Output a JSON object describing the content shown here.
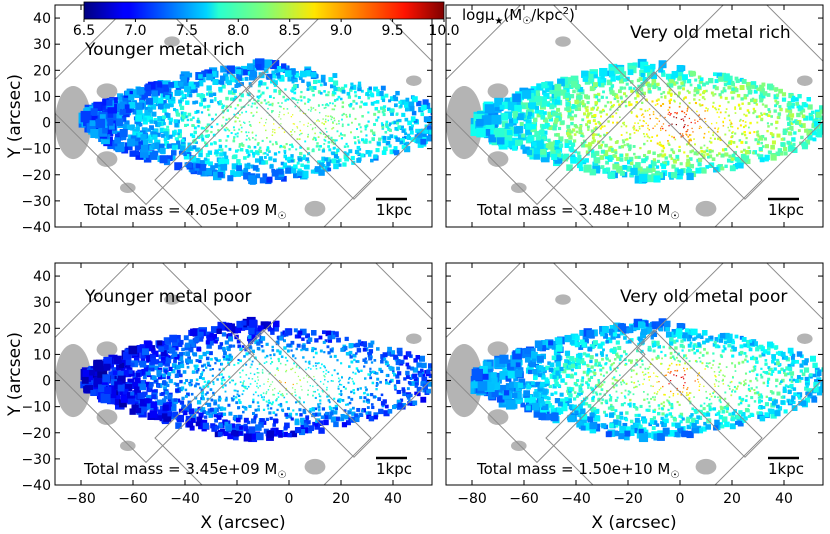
{
  "colorbar": {
    "label": "logμ",
    "label_suffix": "(M",
    "label_unit": "/kpc",
    "label_exp": "2",
    "label_close": ")",
    "ticks": [
      6.5,
      7.0,
      7.5,
      8.0,
      8.5,
      9.0,
      9.5,
      10.0
    ],
    "tick_labels": [
      "6.5",
      "7.0",
      "7.5",
      "8.0",
      "8.5",
      "9.0",
      "9.5",
      "10.0"
    ],
    "range": [
      6.5,
      10.0
    ],
    "colormap": "jet"
  },
  "chart_data": [
    {
      "type": "scatter",
      "title": "Younger metal rich",
      "mass_prefix": "Total mass = ",
      "mass_value": "4.05e+09",
      "mass_unit": "M",
      "scalebar": "1kpc",
      "peak_logmu": 8.7,
      "core_logmu": 8.5,
      "outer_logmu": 7.3,
      "xlabel": "",
      "ylabel": "Y (arcsec)",
      "xlim": [
        -90,
        55
      ],
      "ylim": [
        -40,
        45
      ]
    },
    {
      "type": "scatter",
      "title": "Very old metal rich",
      "mass_prefix": "Total mass = ",
      "mass_value": "3.48e+10",
      "mass_unit": "M",
      "scalebar": "1kpc",
      "peak_logmu": 9.9,
      "core_logmu": 9.0,
      "outer_logmu": 7.7,
      "xlabel": "",
      "ylabel": "",
      "xlim": [
        -90,
        55
      ],
      "ylim": [
        -40,
        45
      ]
    },
    {
      "type": "scatter",
      "title": "Younger metal poor",
      "mass_prefix": "Total mass = ",
      "mass_value": "3.45e+09",
      "mass_unit": "M",
      "scalebar": "1kpc",
      "peak_logmu": 8.9,
      "core_logmu": 8.1,
      "outer_logmu": 6.9,
      "xlabel": "X (arcsec)",
      "ylabel": "Y (arcsec)",
      "xlim": [
        -90,
        55
      ],
      "ylim": [
        -40,
        45
      ]
    },
    {
      "type": "scatter",
      "title": "Very old metal poor",
      "mass_prefix": "Total mass = ",
      "mass_value": "1.50e+10",
      "mass_unit": "M",
      "scalebar": "1kpc",
      "peak_logmu": 9.8,
      "core_logmu": 8.6,
      "outer_logmu": 7.4,
      "xlabel": "X (arcsec)",
      "ylabel": "",
      "xlim": [
        -90,
        55
      ],
      "ylim": [
        -40,
        45
      ]
    }
  ],
  "axes": {
    "yticks": [
      -40,
      -30,
      -20,
      -10,
      0,
      10,
      20,
      30,
      40
    ],
    "xticks": [
      -80,
      -60,
      -40,
      -20,
      0,
      20,
      40
    ]
  },
  "colors": {
    "masked": "#b4b4b4",
    "frame": "#000000",
    "fields": "#8c8c8c"
  }
}
